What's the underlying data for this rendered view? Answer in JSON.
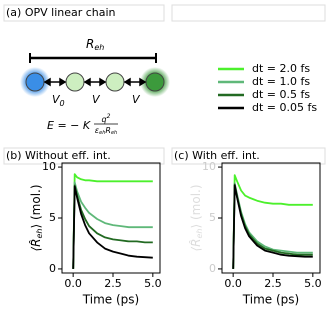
{
  "diagram": {
    "title": "(a) OPV linear chain",
    "distance": [
      "R",
      "eh"
    ],
    "couplings": [
      [
        "V",
        "0"
      ],
      [
        "V",
        ""
      ],
      [
        "V",
        ""
      ]
    ],
    "equation": {
      "lhs": "E = − K",
      "numerator": [
        "q",
        "2"
      ],
      "denominator": [
        "ε",
        "eh",
        "R",
        "eh"
      ]
    }
  },
  "chart_data": [
    {
      "type": "line",
      "title": "(b) Without eff. int.",
      "xlabel": "Time (ps)",
      "ylabel": [
        "⟨R̂",
        "eh",
        "⟩ (mol.)"
      ],
      "x": [
        0,
        0.1,
        0.25,
        0.5,
        0.75,
        1,
        1.5,
        2,
        2.5,
        3,
        3.5,
        4,
        4.5,
        5
      ],
      "xlim": [
        -0.7,
        5.45
      ],
      "ylim": [
        -0.4,
        10.4
      ],
      "xticks": [
        {
          "value": 0,
          "label": "0.0"
        },
        2.5,
        {
          "value": 5,
          "label": "5.0"
        }
      ],
      "yticks": [
        0,
        5,
        10
      ],
      "series": [
        {
          "name": "dt = 2.0 fs",
          "color": "#4cf02c",
          "values": [
            0,
            9.3,
            9.0,
            8.8,
            8.7,
            8.7,
            8.6,
            8.6,
            8.6,
            8.6,
            8.6,
            8.6,
            8.6,
            8.6
          ]
        },
        {
          "name": "dt = 1.0 fs",
          "color": "#5fb879",
          "values": [
            0,
            8.5,
            7.6,
            6.6,
            6.0,
            5.5,
            4.9,
            4.5,
            4.3,
            4.2,
            4.1,
            4.1,
            4.1,
            4.1
          ]
        },
        {
          "name": "dt = 0.5 fs",
          "color": "#226a22",
          "values": [
            0,
            8.2,
            7.2,
            5.8,
            4.9,
            4.2,
            3.5,
            3.1,
            2.9,
            2.8,
            2.7,
            2.7,
            2.6,
            2.6
          ]
        },
        {
          "name": "dt = 0.05 fs",
          "color": "#000000",
          "values": [
            0,
            8.1,
            7.0,
            5.4,
            4.3,
            3.5,
            2.6,
            2.0,
            1.7,
            1.5,
            1.3,
            1.2,
            1.15,
            1.1
          ]
        }
      ]
    },
    {
      "type": "line",
      "title": "(c) With eff. int.",
      "xlabel": "Time (ps)",
      "ylabel": [
        "⟨R̂",
        "eh",
        "⟩ (mol.)"
      ],
      "ylabel_color": "#dddddd",
      "ytick_color": "#cccccc",
      "x": [
        0,
        0.1,
        0.25,
        0.5,
        0.75,
        1,
        1.5,
        2,
        2.5,
        3,
        3.5,
        4,
        4.5,
        5
      ],
      "xlim": [
        -0.7,
        5.45
      ],
      "ylim": [
        -0.4,
        10.4
      ],
      "xticks": [
        {
          "value": 0,
          "label": "0.0"
        },
        2.5,
        {
          "value": 5,
          "label": "5.0"
        }
      ],
      "yticks": [
        0,
        5,
        10
      ],
      "series": [
        {
          "color": "#4cf02c",
          "values": [
            0,
            9.2,
            8.6,
            7.7,
            7.2,
            7.0,
            6.7,
            6.5,
            6.4,
            6.4,
            6.3,
            6.3,
            6.3,
            6.3
          ]
        },
        {
          "color": "#5fb879",
          "values": [
            0,
            8.4,
            7.3,
            5.6,
            4.4,
            3.6,
            2.7,
            2.2,
            1.9,
            1.8,
            1.7,
            1.6,
            1.6,
            1.6
          ]
        },
        {
          "color": "#226a22",
          "values": [
            0,
            8.3,
            7.1,
            5.4,
            4.2,
            3.4,
            2.5,
            2.0,
            1.8,
            1.6,
            1.5,
            1.4,
            1.4,
            1.4
          ]
        },
        {
          "color": "#000000",
          "values": [
            0,
            8.2,
            7.0,
            5.2,
            4.0,
            3.2,
            2.3,
            1.8,
            1.6,
            1.4,
            1.3,
            1.25,
            1.2,
            1.2
          ]
        }
      ]
    }
  ]
}
